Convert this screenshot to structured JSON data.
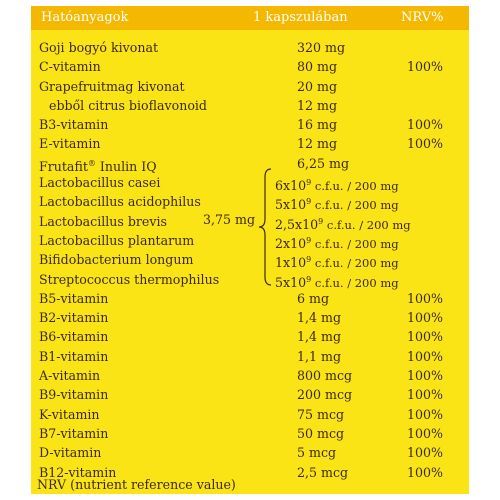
{
  "header": {
    "name_label": "Hatóanyagok",
    "amount_label": "1 kapszulában",
    "nrv_label": "NRV%"
  },
  "rows": [
    {
      "name": "Goji bogyó kivonat",
      "amount": "320 mg",
      "nrv": ""
    },
    {
      "name": "C-vitamin",
      "amount": "80 mg",
      "nrv": "100%"
    },
    {
      "name": "Grapefruitmag kivonat",
      "amount": "20 mg",
      "nrv": ""
    },
    {
      "name": "ebből citrus bioflavonoid",
      "amount": "12 mg",
      "nrv": ""
    },
    {
      "name": "B3-vitamin",
      "amount": "16 mg",
      "nrv": "100%"
    },
    {
      "name": "E-vitamin",
      "amount": "12 mg",
      "nrv": "100%"
    },
    {
      "name": "Frutafit",
      "name_sup": "®",
      "name_suffix": " Inulin IQ",
      "amount": "6,25 mg",
      "nrv": ""
    }
  ],
  "lactobacillus_total": "3,75 mg",
  "lactobacilli": [
    {
      "name": "Lactobacillus casei",
      "base": "6x10",
      "exp": "9",
      "unit": " c.f.u. / 200 mg"
    },
    {
      "name": "Lactobacillus acidophilus",
      "base": "5x10",
      "exp": "9",
      "unit": " c.f.u. / 200 mg"
    },
    {
      "name": "Lactobacillus brevis",
      "base": "2,5x10",
      "exp": "9",
      "unit": " c.f.u. / 200 mg"
    },
    {
      "name": "Lactobacillus plantarum",
      "base": "2x10",
      "exp": "9",
      "unit": " c.f.u. / 200 mg"
    },
    {
      "name": "Bifidobacterium longum",
      "base": "1x10",
      "exp": "9",
      "unit": " c.f.u. / 200 mg"
    },
    {
      "name": "Streptococcus thermophilus",
      "base": "5x10",
      "exp": "9",
      "unit": " c.f.u. / 200 mg"
    }
  ],
  "vitamins": [
    {
      "name": "B5-vitamin",
      "amount": "6 mg",
      "nrv": "100%"
    },
    {
      "name": "B2-vitamin",
      "amount": "1,4 mg",
      "nrv": "100%"
    },
    {
      "name": "B6-vitamin",
      "amount": "1,4 mg",
      "nrv": "100%"
    },
    {
      "name": "B1-vitamin",
      "amount": "1,1 mg",
      "nrv": "100%"
    },
    {
      "name": "A-vitamin",
      "amount": "800 mcg",
      "nrv": "100%"
    },
    {
      "name": "B9-vitamin",
      "amount": "200 mcg",
      "nrv": "100%"
    },
    {
      "name": "K-vitamin",
      "amount": "75 mcg",
      "nrv": "100%"
    },
    {
      "name": "B7-vitamin",
      "amount": "50 mcg",
      "nrv": "100%"
    },
    {
      "name": "D-vitamin",
      "amount": "5 mcg",
      "nrv": "100%"
    },
    {
      "name": "B12-vitamin",
      "amount": "2,5 mcg",
      "nrv": "100%"
    }
  ],
  "footer": "NRV (nutrient reference value)",
  "colors": {
    "panel": "#fbe416",
    "header": "#f4b800",
    "text": "#3a2a14"
  }
}
